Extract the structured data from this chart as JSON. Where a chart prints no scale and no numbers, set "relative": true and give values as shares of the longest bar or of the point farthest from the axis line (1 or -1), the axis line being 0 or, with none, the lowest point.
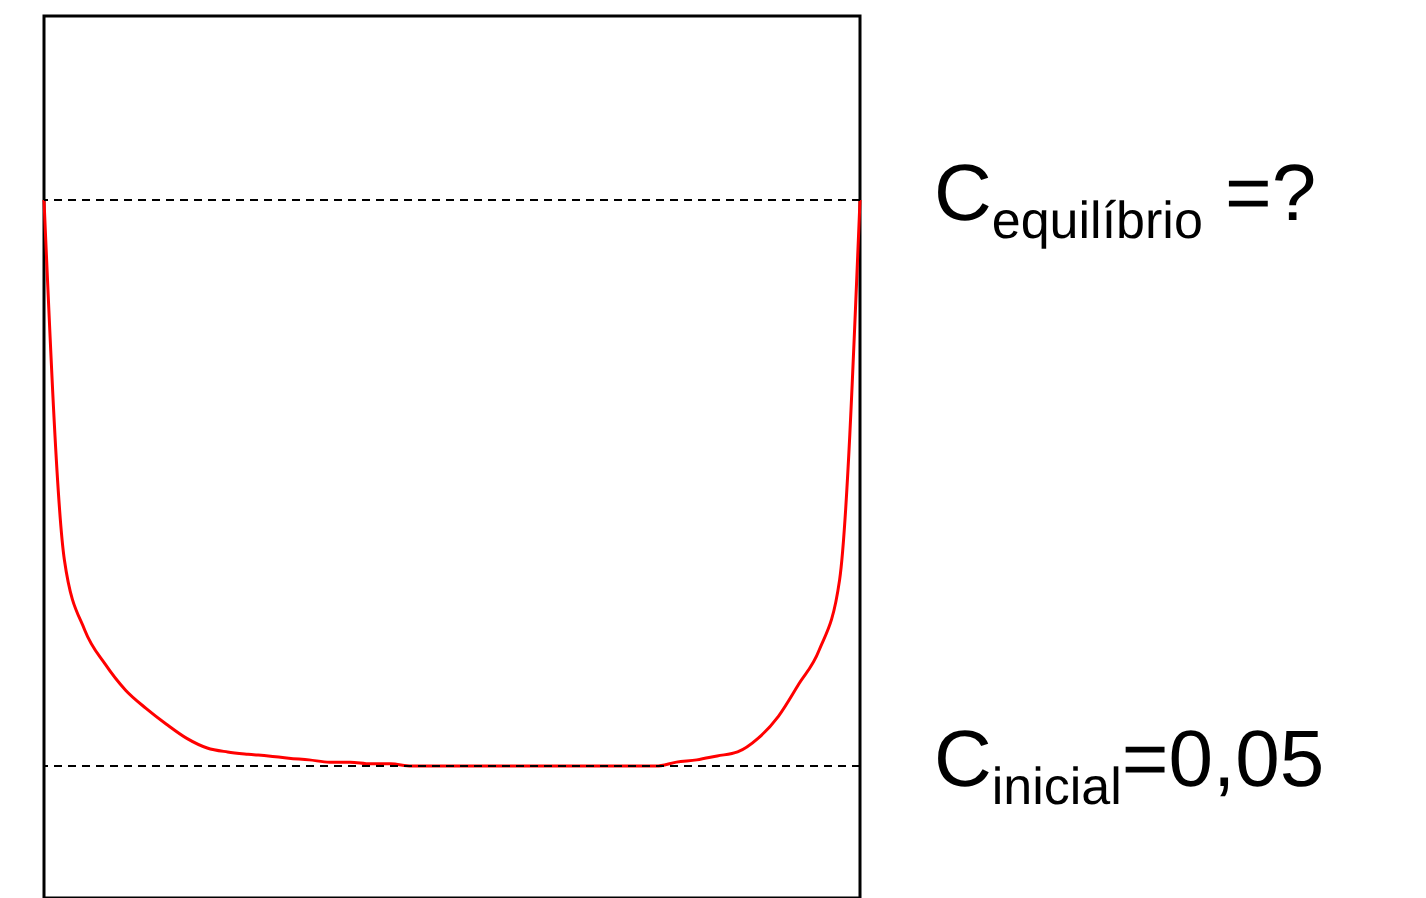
{
  "chart_data": {
    "type": "line",
    "relative": true,
    "categories": [
      null,
      null,
      null,
      null,
      null,
      null,
      null,
      null,
      null,
      null,
      null,
      null,
      null,
      null,
      null,
      null,
      null,
      null,
      null,
      null,
      null,
      null,
      null,
      null,
      null,
      null,
      null,
      null,
      null,
      null,
      null,
      null,
      null,
      null,
      null,
      null,
      null,
      null,
      null,
      null,
      null
    ],
    "series": [
      {
        "color": "#ff0000",
        "values": [
          1,
          0.364,
          0.24,
          0.18,
          0.134,
          0.102,
          0.074,
          0.049,
          0.032,
          0.025,
          0.021,
          0.018,
          0.014,
          0.011,
          0.007,
          0.007,
          0.004,
          0.004,
          0,
          0,
          0,
          0,
          0,
          0,
          0,
          0,
          0,
          0,
          0,
          0,
          0,
          0.007,
          0.011,
          0.018,
          0.025,
          0.049,
          0.088,
          0.145,
          0.205,
          0.329,
          1
        ]
      }
    ],
    "ref_lines": [
      {
        "axis": "y",
        "value": 1,
        "line_style": "dashed",
        "color": "#000000"
      },
      {
        "axis": "y",
        "value": 0,
        "line_style": "dashed",
        "color": "#000000"
      }
    ],
    "annotations": [
      "C$_{equilíbrio}$ =?",
      "C$_{inicial}$=0,05"
    ],
    "marker": "none",
    "line_style": "solid"
  }
}
